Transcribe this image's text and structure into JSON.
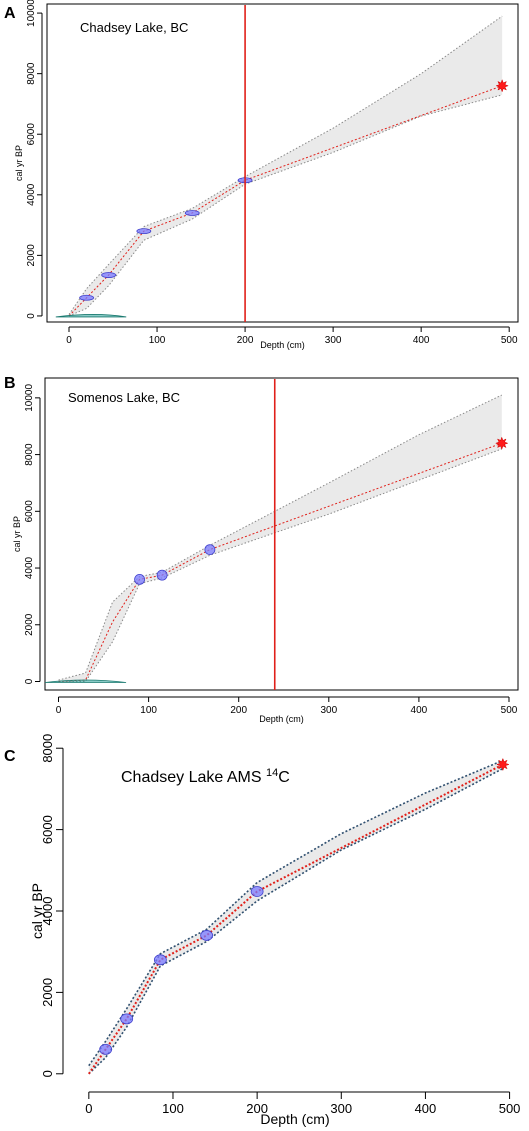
{
  "chart_data": [
    {
      "panel": "A",
      "type": "line",
      "title": "Chadsey Lake, BC",
      "xlabel": "Depth (cm)",
      "ylabel": "cal yr BP",
      "xlim": [
        -25,
        510
      ],
      "ylim": [
        -200,
        10300
      ],
      "xticks": [
        0,
        100,
        200,
        300,
        400,
        500
      ],
      "yticks": [
        0,
        2000,
        4000,
        6000,
        8000,
        10000
      ],
      "median": {
        "x": [
          0,
          20,
          45,
          85,
          140,
          200,
          492
        ],
        "y": [
          0,
          600,
          1350,
          2800,
          3400,
          4480,
          7600
        ]
      },
      "upper": {
        "x": [
          0,
          20,
          45,
          85,
          140,
          200,
          300,
          400,
          492
        ],
        "y": [
          50,
          900,
          1700,
          2950,
          3550,
          4600,
          6200,
          8000,
          9900
        ]
      },
      "lower": {
        "x": [
          0,
          20,
          45,
          85,
          140,
          200,
          300,
          400,
          492
        ],
        "y": [
          0,
          250,
          1000,
          2500,
          3200,
          4350,
          5400,
          6600,
          7300
        ]
      },
      "dates": [
        {
          "depth": 20,
          "age": 600
        },
        {
          "depth": 45,
          "age": 1350
        },
        {
          "depth": 85,
          "age": 2800
        },
        {
          "depth": 140,
          "age": 3400
        },
        {
          "depth": 200,
          "age": 4480
        }
      ],
      "marker": {
        "depth": 492,
        "age": 7600
      },
      "vline": 200
    },
    {
      "panel": "B",
      "type": "line",
      "title": "Somenos Lake, BC",
      "xlabel": "Depth (cm)",
      "ylabel": "cal yr BP",
      "xlim": [
        -15,
        510
      ],
      "ylim": [
        -300,
        10700
      ],
      "xticks": [
        0,
        100,
        200,
        300,
        400,
        500
      ],
      "yticks": [
        0,
        2000,
        4000,
        6000,
        8000,
        10000
      ],
      "median": {
        "x": [
          0,
          30,
          60,
          90,
          115,
          168,
          492
        ],
        "y": [
          0,
          50,
          2100,
          3600,
          3750,
          4650,
          8400
        ]
      },
      "upper": {
        "x": [
          0,
          30,
          60,
          90,
          115,
          168,
          300,
          400,
          492
        ],
        "y": [
          50,
          300,
          2800,
          3700,
          3850,
          4800,
          7000,
          8700,
          10100
        ]
      },
      "lower": {
        "x": [
          0,
          30,
          60,
          90,
          115,
          168,
          300,
          400,
          492
        ],
        "y": [
          0,
          0,
          1400,
          3450,
          3650,
          4450,
          5900,
          7100,
          8200
        ]
      },
      "dates": [
        {
          "depth": 90,
          "age": 3600
        },
        {
          "depth": 115,
          "age": 3750
        },
        {
          "depth": 168,
          "age": 4650
        }
      ],
      "marker": {
        "depth": 492,
        "age": 8400
      },
      "vline": 240
    },
    {
      "panel": "C",
      "type": "line",
      "title": "Chadsey Lake AMS",
      "title_sup": "14",
      "title_after": "C",
      "xlabel": "Depth (cm)",
      "ylabel": "cal yr BP",
      "xlim": [
        -20,
        510
      ],
      "ylim": [
        -300,
        8300
      ],
      "xticks": [
        0,
        100,
        200,
        300,
        400,
        500
      ],
      "yticks": [
        0,
        2000,
        4000,
        6000,
        8000
      ],
      "median": {
        "x": [
          0,
          20,
          45,
          85,
          140,
          200,
          492
        ],
        "y": [
          0,
          600,
          1350,
          2800,
          3400,
          4480,
          7600
        ]
      },
      "upper": {
        "x": [
          0,
          20,
          45,
          85,
          140,
          200,
          300,
          400,
          492
        ],
        "y": [
          200,
          800,
          1600,
          2950,
          3550,
          4700,
          5900,
          6900,
          7700
        ]
      },
      "lower": {
        "x": [
          0,
          20,
          45,
          85,
          140,
          200,
          300,
          400,
          492
        ],
        "y": [
          0,
          400,
          1150,
          2650,
          3250,
          4250,
          5500,
          6500,
          7500
        ]
      },
      "dates": [
        {
          "depth": 20,
          "age": 600
        },
        {
          "depth": 45,
          "age": 1350
        },
        {
          "depth": 85,
          "age": 2800
        },
        {
          "depth": 140,
          "age": 3400
        },
        {
          "depth": 200,
          "age": 4480
        }
      ],
      "marker": {
        "depth": 492,
        "age": 7600
      }
    }
  ]
}
